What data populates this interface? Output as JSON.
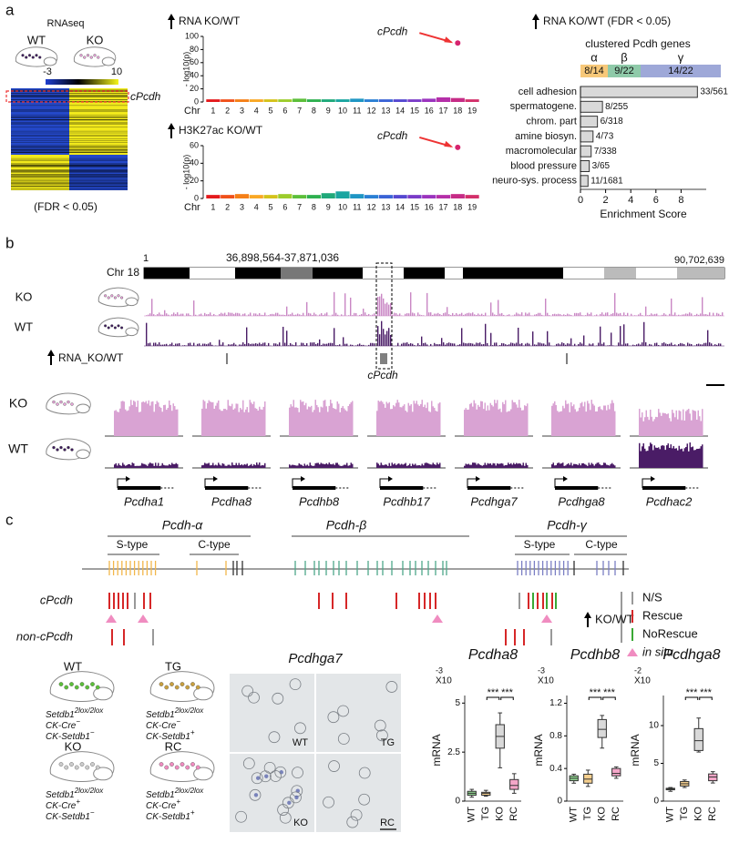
{
  "panel_labels": [
    "a",
    "b",
    "c"
  ],
  "rnaseq": {
    "title": "RNAseq",
    "groups": [
      "WT",
      "KO"
    ],
    "colorbar": {
      "min": -3,
      "max": 10
    },
    "highlight": "cPcdh",
    "note": "(FDR < 0.05)"
  },
  "chart_data": [
    {
      "type": "manhattan",
      "title": "RNA KO/WT",
      "y_label": "- log10(p)",
      "x_label": "Chr",
      "categories": [
        "1",
        "2",
        "3",
        "4",
        "5",
        "6",
        "7",
        "8",
        "9",
        "10",
        "11",
        "12",
        "13",
        "14",
        "15",
        "16",
        "17",
        "18",
        "19"
      ],
      "colors": [
        "#e41a1c",
        "#f0501a",
        "#f57f17",
        "#f9a825",
        "#d4c21a",
        "#9ccc2c",
        "#5cbf3a",
        "#2eb04f",
        "#1fa97a",
        "#1aa5a0",
        "#1f96c4",
        "#2a7fd4",
        "#3a63d6",
        "#5548d0",
        "#7a3cc8",
        "#9b34be",
        "#b52fa8",
        "#c62c86",
        "#d3306a"
      ],
      "values": [
        4,
        4,
        4,
        4,
        4,
        4,
        5,
        4,
        4,
        4,
        5,
        4,
        4,
        4,
        4,
        5,
        7,
        6,
        4
      ],
      "highlight": {
        "label": "cPcdh",
        "category": "18",
        "value": 90,
        "color": "#d6246e"
      },
      "ylim": [
        0,
        100
      ],
      "yticks": [
        0,
        20,
        40,
        60,
        80,
        100
      ]
    },
    {
      "type": "manhattan",
      "title": "H3K27ac KO/WT",
      "y_label": "- log10(p)",
      "x_label": "Chr",
      "categories": [
        "1",
        "2",
        "3",
        "4",
        "5",
        "6",
        "7",
        "8",
        "9",
        "10",
        "11",
        "12",
        "13",
        "14",
        "15",
        "16",
        "17",
        "18",
        "19"
      ],
      "colors": [
        "#e41a1c",
        "#f0501a",
        "#f57f17",
        "#f9a825",
        "#d4c21a",
        "#9ccc2c",
        "#5cbf3a",
        "#2eb04f",
        "#1fa97a",
        "#1aa5a0",
        "#1f96c4",
        "#2a7fd4",
        "#3a63d6",
        "#5548d0",
        "#7a3cc8",
        "#9b34be",
        "#b52fa8",
        "#c62c86",
        "#d3306a"
      ],
      "values": [
        4,
        4,
        5,
        4,
        4,
        5,
        4,
        4,
        6,
        8,
        5,
        4,
        4,
        4,
        4,
        4,
        4,
        5,
        4
      ],
      "highlight": {
        "label": "cPcdh",
        "category": "18",
        "value": 58,
        "color": "#d6246e"
      },
      "ylim": [
        0,
        60
      ],
      "yticks": [
        0,
        20,
        40,
        60
      ]
    },
    {
      "type": "hbar",
      "title": "RNA KO/WT  (FDR < 0.05)",
      "subtitle": "clustered Pcdh genes",
      "clusters": [
        {
          "symbol": "α",
          "ratio": "8/14",
          "color": "#f7c879"
        },
        {
          "symbol": "β",
          "ratio": "9/22",
          "color": "#8fcaa9"
        },
        {
          "symbol": "γ",
          "ratio": "14/22",
          "color": "#9ea8d8"
        }
      ],
      "categories": [
        "cell adhesion",
        "spermatogene.",
        "chrom. part",
        "amine biosyn.",
        "macromolecular",
        "blood pressure",
        "neuro-sys. process"
      ],
      "values": [
        9.3,
        1.75,
        1.35,
        1.0,
        0.85,
        0.7,
        0.6
      ],
      "counts": [
        "33/561",
        "8/255",
        "6/318",
        "4/73",
        "7/338",
        "3/65",
        "11/1681"
      ],
      "color": "#d9d9d9",
      "x_label": "Enrichment Score",
      "xlim": [
        0,
        10
      ],
      "xticks": [
        0,
        2,
        4,
        6,
        8
      ]
    },
    {
      "type": "box",
      "title": "Pcdha8",
      "scale": "X10",
      "exponent": "-3",
      "y_label": "mRNA",
      "categories": [
        "WT",
        "TG",
        "KO",
        "RC"
      ],
      "colors": [
        "#8fd48f",
        "#f5cf8e",
        "#d9d9d9",
        "#f4a6c8"
      ],
      "stats": [
        [
          0.2,
          0.3,
          0.4,
          0.5,
          0.6
        ],
        [
          0.25,
          0.3,
          0.4,
          0.45,
          0.55
        ],
        [
          1.7,
          2.7,
          3.3,
          3.9,
          4.5
        ],
        [
          0.4,
          0.6,
          0.8,
          1.1,
          1.4
        ]
      ],
      "significance": [
        "***",
        "***"
      ],
      "ylim": [
        0,
        5.2
      ],
      "yticks": [
        0,
        2.5,
        5
      ]
    },
    {
      "type": "box",
      "title": "Pcdhb8",
      "scale": "X10",
      "exponent": "-3",
      "y_label": "mRNA",
      "categories": [
        "WT",
        "TG",
        "KO",
        "RC"
      ],
      "colors": [
        "#8fd48f",
        "#f5cf8e",
        "#d9d9d9",
        "#f4a6c8"
      ],
      "stats": [
        [
          0.22,
          0.25,
          0.28,
          0.31,
          0.33
        ],
        [
          0.18,
          0.22,
          0.27,
          0.33,
          0.38
        ],
        [
          0.65,
          0.78,
          0.88,
          1.0,
          1.05
        ],
        [
          0.28,
          0.31,
          0.34,
          0.4,
          0.42
        ]
      ],
      "significance": [
        "***",
        "***"
      ],
      "ylim": [
        0,
        1.25
      ],
      "yticks": [
        0,
        0.4,
        0.8,
        1.2
      ]
    },
    {
      "type": "box",
      "title": "Pcdhga8",
      "scale": "X10",
      "exponent": "-2",
      "y_label": "mRNA",
      "categories": [
        "WT",
        "TG",
        "KO",
        "RC"
      ],
      "colors": [
        "#8fd48f",
        "#f5cf8e",
        "#d9d9d9",
        "#f4a6c8"
      ],
      "stats": [
        [
          1.3,
          1.5,
          1.6,
          1.7,
          1.8
        ],
        [
          1.8,
          2.0,
          2.3,
          2.6,
          2.8
        ],
        [
          6.5,
          6.7,
          8.0,
          9.6,
          11
        ],
        [
          2.4,
          2.7,
          3.2,
          3.6,
          3.9
        ]
      ],
      "significance": [
        "***",
        "***"
      ],
      "ylim": [
        0,
        13.5
      ],
      "yticks": [
        0,
        5,
        10
      ]
    }
  ],
  "genome_browser": {
    "range_start": "1",
    "region": "36,898,564-37,871,036",
    "range_end": "90,702,639",
    "chromosome": "Chr 18",
    "tracks": [
      "KO",
      "WT"
    ],
    "rna_track": "RNA_KO/WT",
    "highlight": "cPcdh",
    "detail_tracks": [
      "KO",
      "WT"
    ],
    "genes": [
      "Pcdha1",
      "Pcdha8",
      "Pcdhb8",
      "Pcdhb17",
      "Pcdhga7",
      "Pcdhga8",
      "Pcdhac2"
    ]
  },
  "cluster_map": {
    "clusters": [
      "Pcdh-α",
      "Pcdh-β",
      "Pcdh-γ"
    ],
    "subtypes": [
      "S-type",
      "C-type",
      "S-type",
      "C-type"
    ],
    "rows": [
      "cPcdh",
      "non-cPcdh"
    ],
    "legend": {
      "title": "KO/WT",
      "items": [
        {
          "label": "N/S",
          "color": "#999999"
        },
        {
          "label": "Rescue",
          "color": "#d62728"
        },
        {
          "label": "NoRescue",
          "color": "#3aa935"
        },
        {
          "label": "in situ",
          "color": "#f08cc0"
        }
      ]
    }
  },
  "genotypes": [
    {
      "name": "WT",
      "dot": "#5cbf3a",
      "lines": [
        {
          "gene": "Setdb1",
          "sup": "2lox/2lox"
        },
        {
          "gene": "CK-Cre",
          "sup": "−"
        },
        {
          "gene": "CK-Setdb1",
          "sup": "−"
        }
      ]
    },
    {
      "name": "TG",
      "dot": "#c8a040",
      "lines": [
        {
          "gene": "Setdb1",
          "sup": "2lox/2lox"
        },
        {
          "gene": "CK-Cre",
          "sup": "−"
        },
        {
          "gene": "CK-Setdb1",
          "sup": "+"
        }
      ]
    },
    {
      "name": "KO",
      "dot": "#cccccc",
      "lines": [
        {
          "gene": "Setdb1",
          "sup": "2lox/2lox"
        },
        {
          "gene": "CK-Cre",
          "sup": "+"
        },
        {
          "gene": "CK-Setdb1",
          "sup": "−"
        }
      ]
    },
    {
      "name": "RC",
      "dot": "#f08cc0",
      "lines": [
        {
          "gene": "Setdb1",
          "sup": "2lox/2lox"
        },
        {
          "gene": "CK-Cre",
          "sup": "+"
        },
        {
          "gene": "CK-Setdb1",
          "sup": "+"
        }
      ]
    }
  ],
  "micrograph": {
    "title": "Pcdhga7",
    "panels": [
      "WT",
      "TG",
      "KO",
      "RC"
    ]
  }
}
